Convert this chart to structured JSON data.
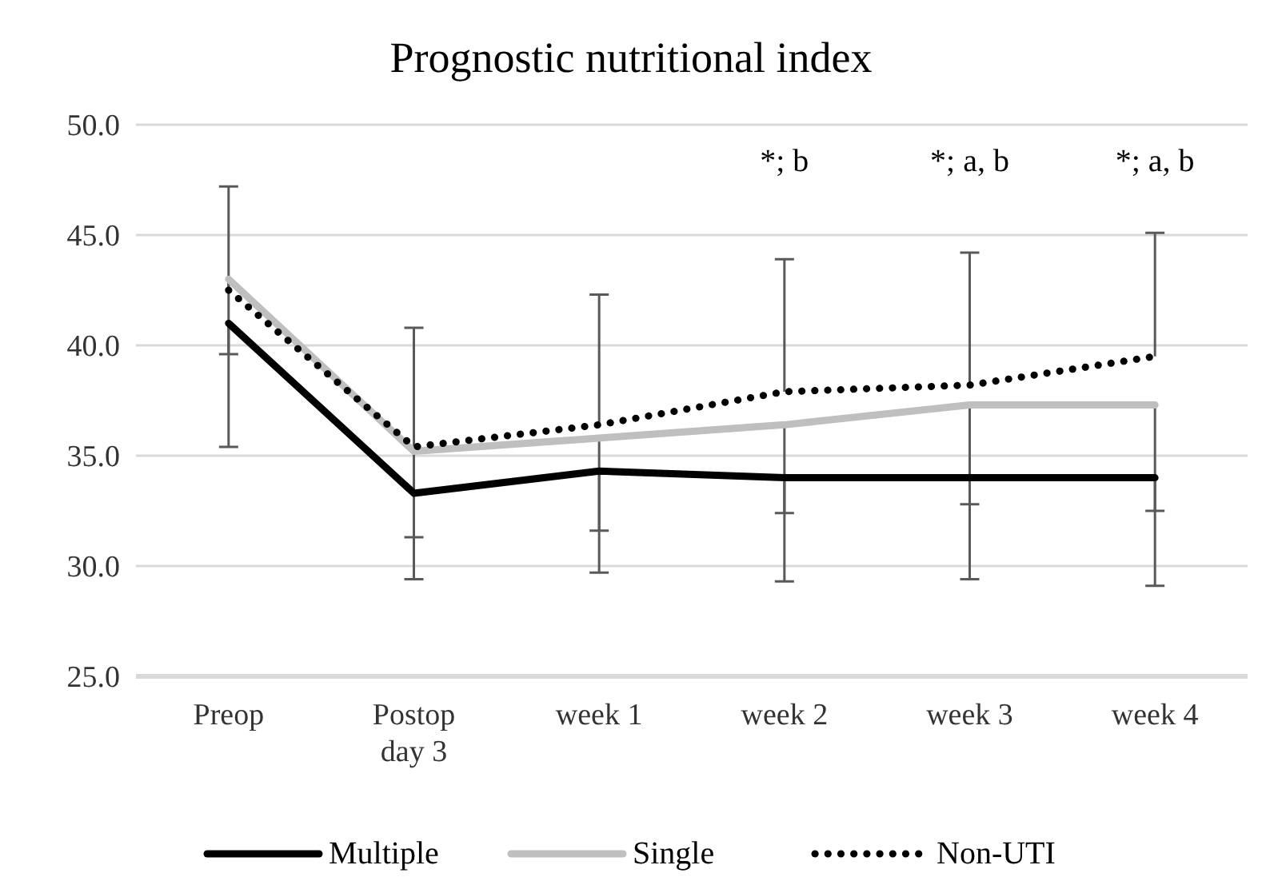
{
  "chart_data": {
    "type": "line",
    "title": "Prognostic nutritional index",
    "categories": [
      "Preop",
      "Postop day 3",
      "week 1",
      "week 2",
      "week 3",
      "week 4"
    ],
    "series": [
      {
        "name": "Multiple",
        "color": "#000000",
        "line_style": "solid",
        "values": [
          41.0,
          33.3,
          34.3,
          34.0,
          34.0,
          34.0
        ],
        "errors": [
          [
            35.4,
            41.0
          ],
          [
            29.4,
            33.3
          ],
          [
            29.7,
            34.3
          ],
          [
            29.3,
            34.0
          ],
          [
            29.4,
            34.0
          ],
          [
            29.1,
            34.0
          ]
        ]
      },
      {
        "name": "Single",
        "color": "#bfbfbf",
        "line_style": "solid",
        "values": [
          43.0,
          35.2,
          35.8,
          36.4,
          37.3,
          37.3
        ],
        "errors": [
          [
            39.6,
            43.0
          ],
          [
            31.3,
            35.2
          ],
          [
            31.6,
            35.8
          ],
          [
            32.4,
            36.4
          ],
          [
            32.8,
            37.3
          ],
          [
            32.5,
            37.3
          ]
        ]
      },
      {
        "name": "Non-UTI",
        "color": "#000000",
        "line_style": "dotted",
        "values": [
          42.5,
          35.4,
          36.4,
          37.9,
          38.2,
          39.5
        ],
        "errors": [
          [
            42.5,
            47.2
          ],
          [
            35.4,
            40.8
          ],
          [
            36.4,
            42.3
          ],
          [
            37.9,
            43.9
          ],
          [
            38.2,
            44.2
          ],
          [
            39.5,
            45.1
          ]
        ]
      }
    ],
    "ylim": [
      25,
      50
    ],
    "yticks": [
      {
        "value": 25,
        "label": "25.0"
      },
      {
        "value": 30,
        "label": "30.0"
      },
      {
        "value": 35,
        "label": "35.0"
      },
      {
        "value": 40,
        "label": "40.0"
      },
      {
        "value": 45,
        "label": "45.0"
      },
      {
        "value": 50,
        "label": "50.0"
      }
    ],
    "grid": "y",
    "legend": "bottom",
    "marker": "none",
    "annotations": [
      "*; b",
      "*; a, b",
      "*; a, b"
    ]
  }
}
